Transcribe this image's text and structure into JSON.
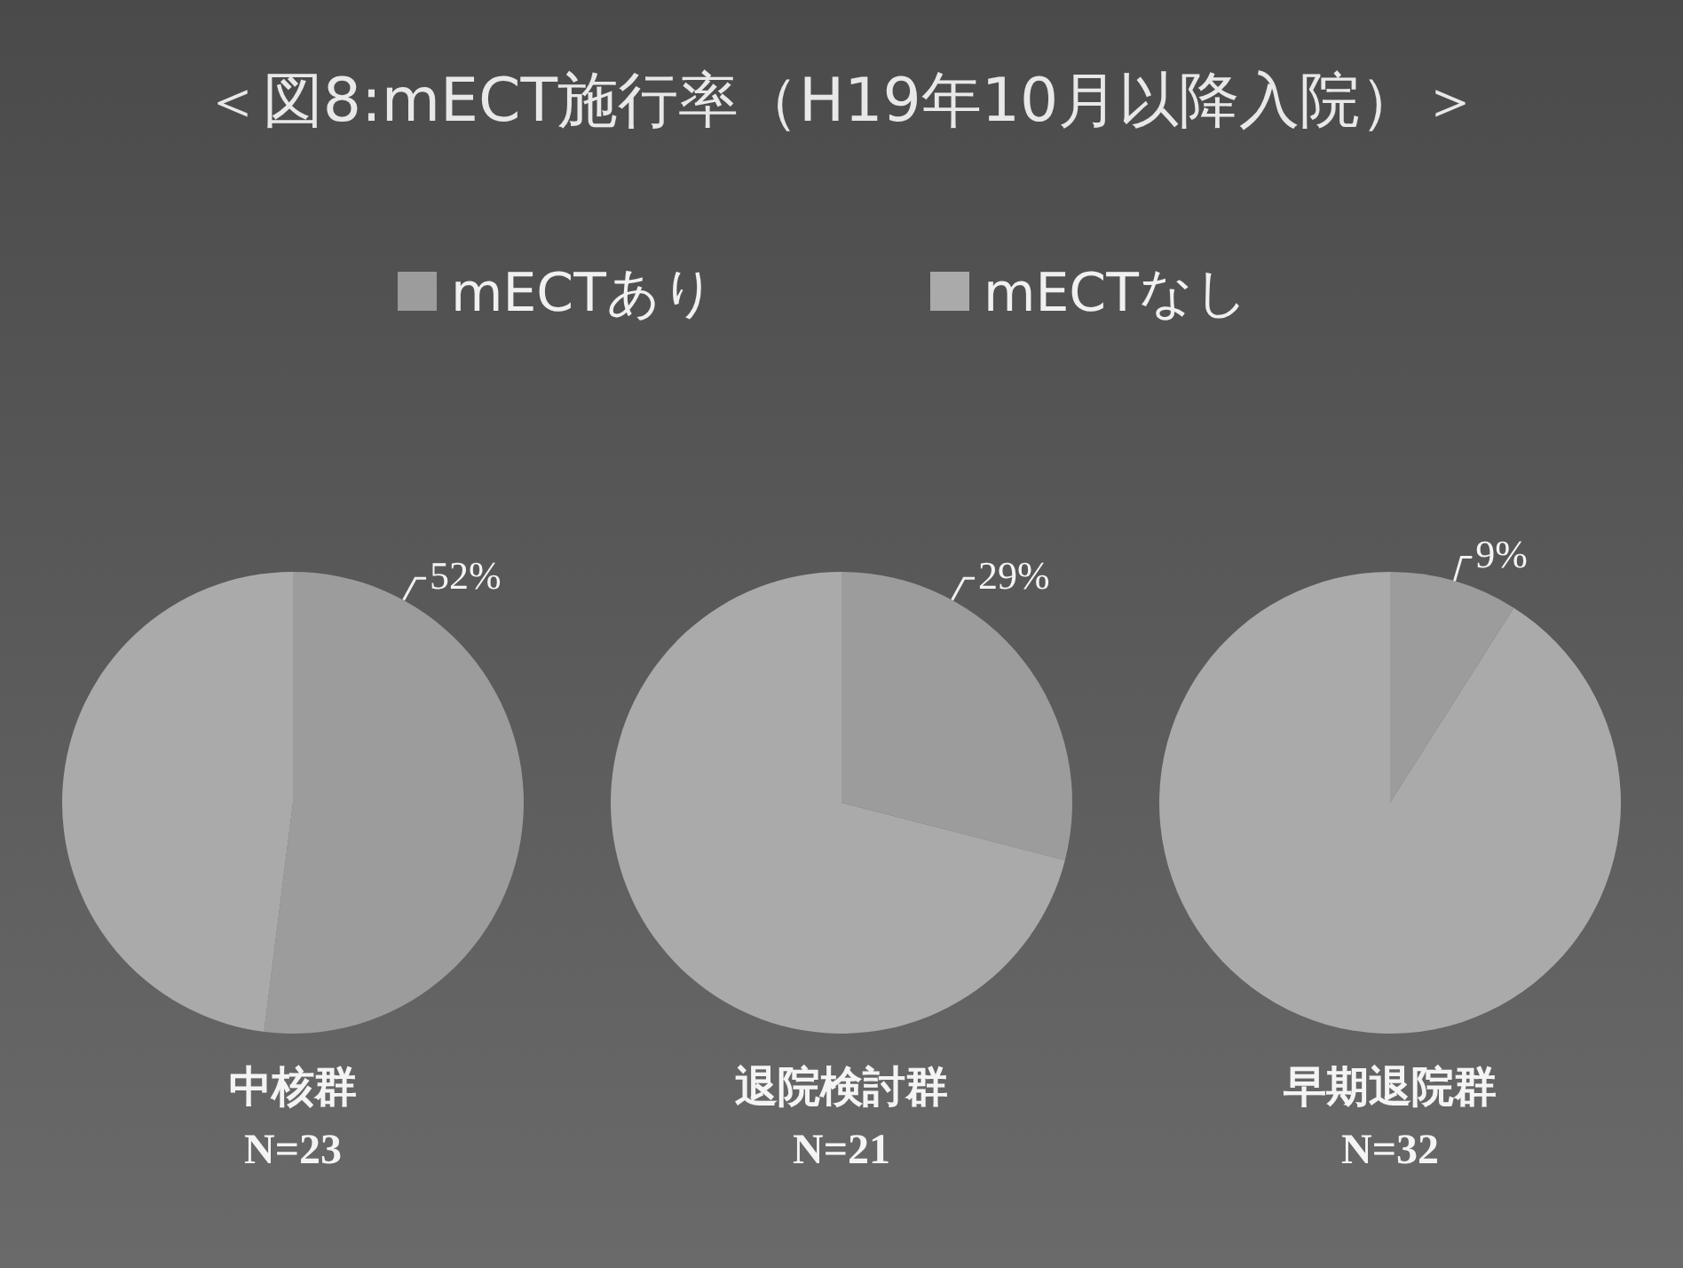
{
  "chart_data": {
    "type": "pie",
    "title": "＜図8:mECT施行率（H19年10月以降入院）＞",
    "legend": "top",
    "categories": [
      "mECTあり",
      "mECTなし"
    ],
    "colors": [
      "#9c9c9c",
      "#aaaaaa"
    ],
    "series": [
      {
        "name": "中核群",
        "values": [
          52,
          48
        ],
        "value_labels": [
          "52%",
          null
        ]
      },
      {
        "name": "退院検討群",
        "values": [
          29,
          71
        ],
        "value_labels": [
          "29%",
          null
        ]
      },
      {
        "name": "早期退院群",
        "values": [
          9,
          91
        ],
        "value_labels": [
          "9%",
          null
        ]
      }
    ],
    "annotations": [
      "N=23",
      "N=21",
      "N=32"
    ]
  }
}
